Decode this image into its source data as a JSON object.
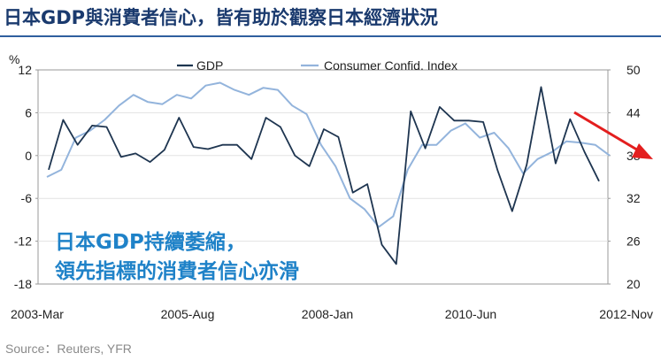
{
  "title": "日本GDP與消費者信心，皆有助於觀察日本經濟狀況",
  "source": "Source：Reuters, YFR",
  "annotation": {
    "line1": "日本GDP持續萎縮，",
    "line2": "領先指標的消費者信心亦滑"
  },
  "colors": {
    "title": "#1a3a6e",
    "rule": "#2f5f9e",
    "gdp": "#1e3550",
    "confidence": "#93b4dc",
    "arrow": "#e31e1e",
    "annotation": "#1f82c8",
    "frame": "#999999"
  },
  "chart_data": {
    "type": "line",
    "x_tick_labels": [
      "2003-Mar",
      "2005-Aug",
      "2008-Jan",
      "2010-Jun",
      "2012-Nov"
    ],
    "y_left": {
      "unit": "%",
      "ticks": [
        "12",
        "6",
        "0",
        "-6",
        "-12",
        "-18"
      ],
      "range": [
        -18,
        12
      ]
    },
    "y_right": {
      "ticks": [
        "50",
        "44",
        "38",
        "32",
        "26",
        "20"
      ],
      "range": [
        20,
        50
      ]
    },
    "series": [
      {
        "name": "GDP",
        "axis": "left",
        "values": [
          -2.0,
          5.0,
          1.5,
          4.2,
          4.0,
          -0.2,
          0.3,
          -0.9,
          0.8,
          5.3,
          1.2,
          0.9,
          1.5,
          1.5,
          -0.5,
          5.3,
          4.0,
          0.0,
          -1.5,
          3.7,
          2.6,
          -5.2,
          -4.0,
          -12.5,
          -15.2,
          6.2,
          1.0,
          6.8,
          4.9,
          4.9,
          4.7,
          -2.1,
          -7.8,
          -1.3,
          9.6,
          -1.1,
          5.1,
          0.5,
          -3.6
        ]
      },
      {
        "name": "Consumer Confid. Index",
        "axis": "right",
        "values": [
          35.0,
          36.0,
          40.5,
          41.5,
          43.0,
          45.0,
          46.5,
          45.5,
          45.2,
          46.5,
          46.0,
          47.8,
          48.2,
          47.2,
          46.5,
          47.5,
          47.2,
          45.0,
          43.8,
          39.5,
          36.5,
          32.0,
          30.5,
          28.0,
          29.5,
          36.0,
          39.5,
          39.5,
          41.5,
          42.5,
          40.5,
          41.2,
          39.0,
          35.5,
          37.5,
          38.5,
          40.0,
          39.8,
          39.5,
          38.0
        ]
      }
    ],
    "trend_arrow": {
      "direction": "down",
      "series": "Consumer Confid. Index"
    }
  }
}
